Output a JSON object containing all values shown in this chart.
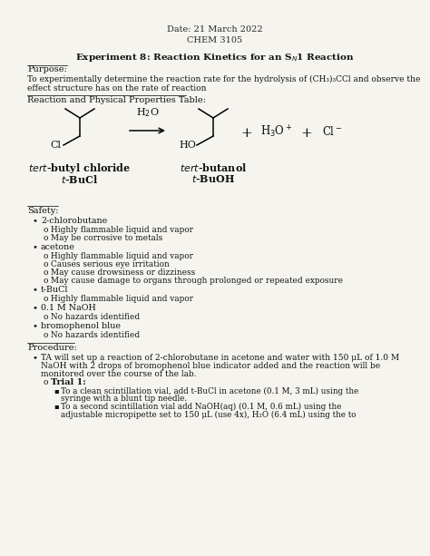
{
  "bg_color": "#f5f4ef",
  "header_line1": "Date: 21 March 2022",
  "header_line2": "CHEM 3105",
  "purpose_text1": "To experimentally determine the reaction rate for the hydrolysis of (CH₃)₃CCl and observe the",
  "purpose_text2": "effect structure has on the rate of reaction",
  "procedure_text1": "TA will set up a reaction of 2-chlorobutane in acetone and water with 150 μL of 1.0 M",
  "procedure_text2": "NaOH with 2 drops of bromophenol blue indicator added and the reaction will be",
  "procedure_text3": "monitored over the course of the lab.",
  "trial1_b1a": "To a clean scintillation vial, add t-BuCl in acetone (0.1 M, 3 mL) using the",
  "trial1_b1b": "syringe with a blunt tip needle.",
  "trial1_b2a": "To a second scintillation vial add NaOH(aq) (0.1 M, 0.6 mL) using the",
  "trial1_b2b": "adjustable micropipette set to 150 μL (use 4x), H₂O (6.4 mL) using the to",
  "safety_items": [
    {
      "bullet": "2-chlorobutane",
      "sub": [
        "Highly flammable liquid and vapor",
        "May be corrosive to metals"
      ]
    },
    {
      "bullet": "acetone",
      "sub": [
        "Highly flammable liquid and vapor",
        "Causes serious eye irritation",
        "May cause drowsiness or dizziness",
        "May cause damage to organs through prolonged or repeated exposure"
      ]
    },
    {
      "bullet": "t-BuCl",
      "sub": [
        "Highly flammable liquid and vapor"
      ]
    },
    {
      "bullet": "0.1 M NaOH",
      "sub": [
        "No hazards identified"
      ]
    },
    {
      "bullet": "bromophenol blue",
      "sub": [
        "No hazards identified"
      ]
    }
  ]
}
